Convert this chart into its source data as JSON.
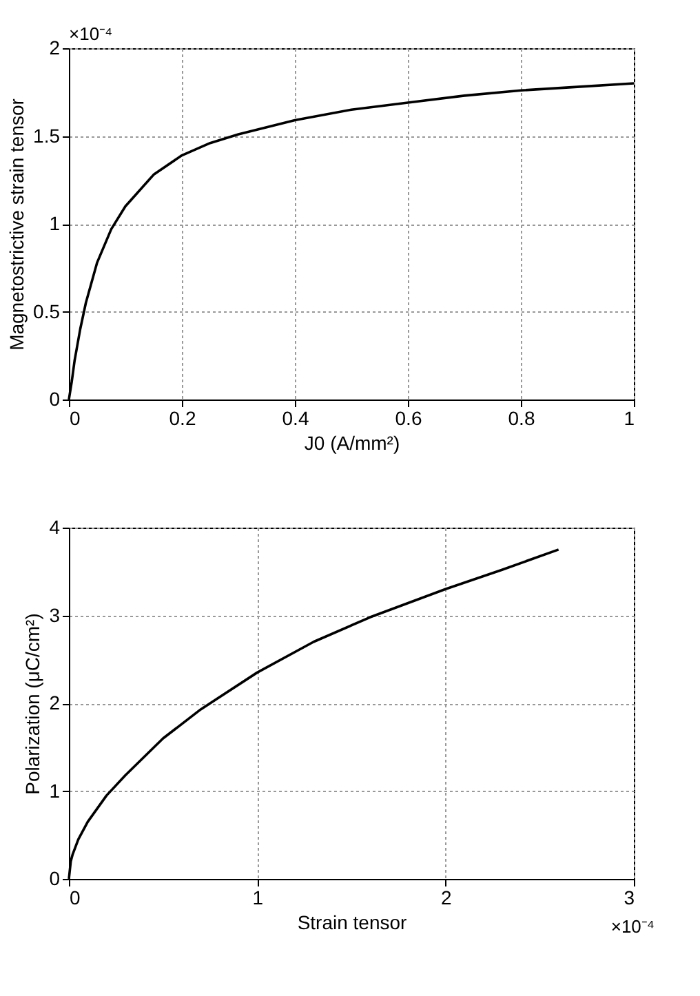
{
  "chart_data": [
    {
      "type": "line",
      "xlabel": "J0 (A/mm²)",
      "ylabel": "Magnetostrictive strain tensor",
      "annotations": [
        "×10⁻⁴"
      ],
      "x": [
        0,
        0.005,
        0.01,
        0.02,
        0.03,
        0.05,
        0.075,
        0.1,
        0.15,
        0.2,
        0.25,
        0.3,
        0.4,
        0.5,
        0.6,
        0.7,
        0.8,
        0.9,
        1.0
      ],
      "series": [
        {
          "color": "#000000",
          "values": [
            0,
            0.1,
            0.22,
            0.4,
            0.55,
            0.78,
            0.97,
            1.1,
            1.28,
            1.39,
            1.46,
            1.51,
            1.59,
            1.65,
            1.69,
            1.73,
            1.76,
            1.78,
            1.8
          ]
        }
      ],
      "xlim": [
        0,
        1
      ],
      "xticks": [
        0,
        0.2,
        0.4,
        0.6,
        0.8,
        1
      ],
      "ylim": [
        0,
        2
      ],
      "yticks": [
        0,
        0.5,
        1,
        1.5,
        2
      ],
      "grid": true,
      "line_style": "solid",
      "marker": "none"
    },
    {
      "type": "line",
      "xlabel": "Strain tensor",
      "ylabel": "Polarization (μC/cm²)",
      "annotations": [
        "×10⁻⁴"
      ],
      "x": [
        0,
        0.01,
        0.02,
        0.05,
        0.1,
        0.2,
        0.3,
        0.5,
        0.7,
        1,
        1.3,
        1.6,
        2,
        2.3,
        2.6
      ],
      "series": [
        {
          "color": "#000000",
          "values": [
            0,
            0.2,
            0.28,
            0.45,
            0.65,
            0.95,
            1.18,
            1.6,
            1.93,
            2.35,
            2.7,
            2.98,
            3.3,
            3.52,
            3.75
          ]
        }
      ],
      "xlim": [
        0,
        3
      ],
      "xticks": [
        0,
        1,
        2,
        3
      ],
      "ylim": [
        0,
        4
      ],
      "yticks": [
        0,
        1,
        2,
        3,
        4
      ],
      "grid": true,
      "line_style": "solid",
      "marker": "none"
    }
  ]
}
